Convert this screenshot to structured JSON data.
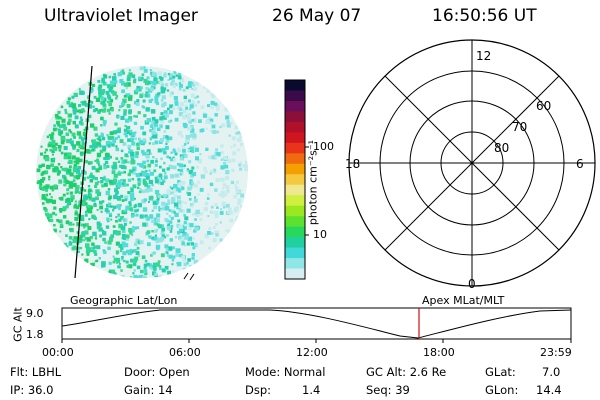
{
  "header": {
    "title": "Ultraviolet Imager",
    "date": "26 May 07",
    "time": "16:50:56 UT"
  },
  "colorbar": {
    "label": "photon cm⁻²s⁻¹",
    "ticks": [
      {
        "label": "100",
        "value": 100
      },
      {
        "label": "10",
        "value": 10
      }
    ],
    "colors": [
      "#0a0a30",
      "#3a0a4a",
      "#6a0d5a",
      "#8c0f3a",
      "#b0102a",
      "#cf1520",
      "#e8341a",
      "#f06a10",
      "#f5a000",
      "#f5c840",
      "#f0e890",
      "#d0f040",
      "#9ce820",
      "#5ee030",
      "#28d85a",
      "#20d0a0",
      "#40d8d8",
      "#90e6e6",
      "#d6eef0"
    ]
  },
  "panels": {
    "left_caption": "Geographic Lat/Lon",
    "right_caption": "Apex MLat/MLT"
  },
  "polar": {
    "mlt_labels": [
      {
        "label": "12",
        "mlt": 12
      },
      {
        "label": "18",
        "mlt": 18
      },
      {
        "label": "6",
        "mlt": 6
      },
      {
        "label": "0",
        "mlt": 0
      }
    ],
    "lat_labels": [
      {
        "label": "80",
        "lat": 80
      },
      {
        "label": "70",
        "lat": 70
      },
      {
        "label": "60",
        "lat": 60
      }
    ]
  },
  "timeline": {
    "ylabel": "GC Alt",
    "y_ticks": [
      {
        "label": "9.0",
        "value": 9.0
      },
      {
        "label": "1.8",
        "value": 1.8
      }
    ],
    "x_ticks": [
      "00:00",
      "06:00",
      "12:00",
      "18:00",
      "23:59"
    ],
    "current_time_marker": "16:50:56"
  },
  "footer": {
    "row1": [
      "Flt: LBHL",
      "Door: Open",
      "Mode: Normal",
      "GC Alt: 2.6 Re",
      "GLat:",
      "7.0"
    ],
    "row2": [
      "IP: 36.0",
      "Gain: 14",
      "Dsp:",
      "1.4",
      "Seq: 39",
      "GLon:",
      "14.4"
    ]
  },
  "colors": {
    "marker": "#d01010",
    "speckle_green": "#30d878",
    "speckle_cyan": "#40d8d8"
  }
}
